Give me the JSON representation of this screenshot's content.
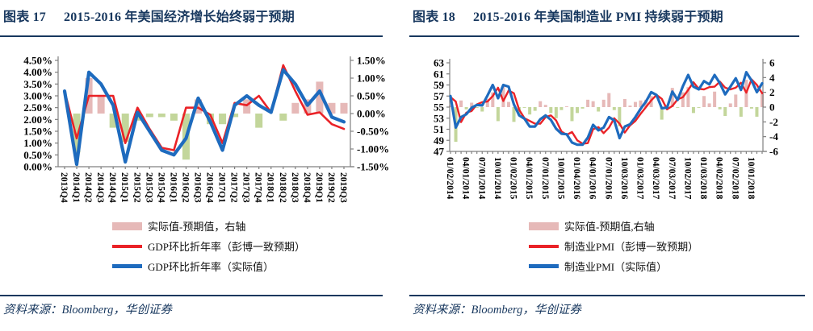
{
  "colors": {
    "navy": "#17375E",
    "red": "#EA2227",
    "blue": "#1E6BBE",
    "pink": "#E6B9B8",
    "green": "#C3D69B",
    "axis": "#808080",
    "text": "#000000",
    "background": "#FFFFFF"
  },
  "panels": [
    {
      "figure_label": "图表 17",
      "title": "2015-2016 年美国经济增长始终弱于预期",
      "source": "资料来源：Bloomberg，华创证券",
      "legend": [
        {
          "label": "实际值-预期值，右轴",
          "swatch": "pink-bar"
        },
        {
          "label": "GDP环比折年率（彭博一致预期）",
          "swatch": "red-line"
        },
        {
          "label": "GDP环比折年率（实际值）",
          "swatch": "blue-line"
        }
      ]
    },
    {
      "figure_label": "图表 18",
      "title": "2015-2016 年美国制造业 PMI 持续弱于预期",
      "source": "资料来源：Bloomberg，华创证券",
      "legend": [
        {
          "label": "实际值-预期值,右轴",
          "swatch": "pink-bar"
        },
        {
          "label": "制造业PMI（彭博一致预期）",
          "swatch": "red-line"
        },
        {
          "label": "制造业PMI（实际值）",
          "swatch": "blue-line"
        }
      ]
    }
  ],
  "chart_data": [
    {
      "type": "combo_bar_line",
      "title": "图表 17 2015-2016 年美国经济增长始终弱于预期",
      "n_points": 24,
      "x_label_step": 1,
      "x_labels": [
        "2013Q4",
        "2014Q1",
        "2014Q2",
        "2014Q3",
        "2014Q4",
        "2015Q1",
        "2015Q2",
        "2015Q3",
        "2015Q4",
        "2016Q1",
        "2016Q2",
        "2016Q3",
        "2016Q4",
        "2017Q1",
        "2017Q2",
        "2017Q3",
        "2017Q4",
        "2018Q1",
        "2018Q2",
        "2018Q3",
        "2018Q4",
        "2019Q1",
        "2019Q2",
        "2019Q3"
      ],
      "left_axis": {
        "min": 0,
        "max": 4.5,
        "tick_values": [
          0,
          0.5,
          1,
          1.5,
          2,
          2.5,
          3,
          3.5,
          4,
          4.5
        ],
        "tick_labels": [
          "0.00%",
          "0.50%",
          "1.00%",
          "1.50%",
          "2.00%",
          "2.50%",
          "3.00%",
          "3.50%",
          "4.00%",
          "4.50%"
        ]
      },
      "right_axis": {
        "min": -1.5,
        "max": 1.5,
        "tick_values": [
          -1.5,
          -1,
          -0.5,
          0,
          0.5,
          1,
          1.5
        ],
        "tick_labels": [
          "-1.50%",
          "-1.00%",
          "-0.50%",
          "0.00%",
          "0.50%",
          "1.00%",
          "1.50%"
        ]
      },
      "series": [
        {
          "name": "实际值-预期值，右轴",
          "type": "bar",
          "axis": "right",
          "values": [
            0,
            -1.1,
            1,
            0.5,
            -0.4,
            -0.8,
            -0.2,
            -0.1,
            -0.1,
            -0.2,
            -1.3,
            0.4,
            -0.3,
            -0.3,
            -0.1,
            0.4,
            -0.4,
            0,
            -0.2,
            0.3,
            0.4,
            0.9,
            0.3,
            0.3
          ]
        },
        {
          "name": "GDP环比折年率（彭博一致预期）",
          "type": "line",
          "axis": "left",
          "color_key": "red",
          "values": [
            3.2,
            1.2,
            3,
            3,
            3,
            1,
            2.5,
            1.6,
            0.8,
            0.7,
            2.5,
            2.5,
            2.2,
            1,
            2.7,
            2.6,
            3,
            2.3,
            4.3,
            3.2,
            2.2,
            2.3,
            1.8,
            1.6
          ]
        },
        {
          "name": "GDP环比折年率（实际值）",
          "type": "line",
          "axis": "left",
          "color_key": "blue",
          "values": [
            3.2,
            0.1,
            4,
            3.5,
            2.6,
            0.2,
            2.3,
            1.5,
            0.7,
            0.5,
            1.2,
            2.9,
            1.9,
            0.7,
            2.6,
            3,
            2.6,
            2.3,
            4.1,
            3.5,
            2.6,
            3.2,
            2.1,
            1.9
          ]
        }
      ]
    },
    {
      "type": "combo_bar_line",
      "title": "图表 18 2015-2016 年美国制造业 PMI 持续弱于预期",
      "n_points": 60,
      "x_label_step": 3,
      "x_labels": [
        "01/02/2014",
        "04/01/2014",
        "07/01/2014",
        "10/01/2014",
        "01/02/2015",
        "04/01/2015",
        "07/01/2015",
        "10/01/2015",
        "01/04/2016",
        "04/01/2016",
        "07/01/2016",
        "10/03/2016",
        "01/03/2017",
        "04/03/2017",
        "07/03/2017",
        "10/02/2017",
        "01/03/2018",
        "04/02/2018",
        "07/02/2018",
        "10/01/2018"
      ],
      "left_axis": {
        "min": 47,
        "max": 63,
        "tick_values": [
          47,
          49,
          51,
          53,
          55,
          57,
          59,
          61,
          63
        ],
        "tick_labels": [
          "47",
          "49",
          "51",
          "53",
          "55",
          "57",
          "59",
          "61",
          "63"
        ]
      },
      "right_axis": {
        "min": -6,
        "max": 6,
        "tick_values": [
          -6,
          -4,
          -2,
          0,
          2,
          4,
          6
        ],
        "tick_labels": [
          "-6",
          "-4",
          "-2",
          "0",
          "2",
          "4",
          "6"
        ]
      },
      "series": [
        {
          "name": "实际值-预期值,右轴",
          "type": "bar",
          "axis": "right",
          "values": [
            0.2,
            -4.7,
            0.9,
            -0.3,
            0.6,
            -0.1,
            -0.6,
            1.1,
            2,
            -1.9,
            2.9,
            0.7,
            -2,
            -1,
            -0.1,
            -1,
            -0.5,
            0.8,
            0.3,
            -0.8,
            -1.5,
            -0.4,
            0.1,
            -1.9,
            -0.8,
            -0.2,
            1,
            0.8,
            -0.6,
            1,
            1.9,
            -0.4,
            -2.6,
            1.1,
            0.2,
            0.7,
            0.9,
            1,
            1.5,
            0,
            -1.7,
            0.3,
            2.6,
            -0.1,
            2,
            2.7,
            -0.8,
            -0.1,
            1.5,
            0.5,
            2.1,
            -0.3,
            -1.2,
            0.5,
            1.7,
            -1.3,
            3.7,
            -0.2,
            -1.3,
            1.8
          ]
        },
        {
          "name": "制造业PMI（彭博一致预期）",
          "type": "line",
          "axis": "left",
          "color_key": "red",
          "values": [
            56.8,
            56,
            52.3,
            54,
            54.3,
            55.5,
            55.9,
            56,
            57,
            58.5,
            56.1,
            58,
            57.5,
            54.5,
            53,
            52.5,
            52,
            52,
            53.2,
            53.5,
            52.6,
            50.6,
            50,
            50.5,
            49,
            48.4,
            48.5,
            51,
            51.4,
            50.3,
            51.3,
            53,
            52,
            50.4,
            51.7,
            52.5,
            53.8,
            55,
            56.2,
            57.2,
            56.5,
            54.6,
            55.2,
            56.4,
            56.8,
            58.1,
            59.5,
            58.3,
            58.2,
            58.6,
            58.7,
            59.6,
            58.5,
            58.2,
            58.5,
            59.4,
            57.6,
            60,
            59,
            57.5
          ]
        },
        {
          "name": "制造业PMI（实际值）",
          "type": "line",
          "axis": "left",
          "color_key": "blue",
          "values": [
            57,
            51.3,
            53.2,
            53.7,
            54.9,
            55.4,
            55.3,
            57.1,
            59,
            56.6,
            59,
            58.7,
            55.5,
            53.5,
            52.9,
            51.5,
            51.5,
            52.8,
            53.5,
            52.7,
            51.1,
            50.2,
            50.1,
            48.6,
            48.2,
            48.2,
            49.5,
            51.8,
            50.8,
            51.3,
            53.2,
            52.6,
            49.4,
            51.5,
            51.9,
            53.2,
            54.7,
            56,
            57.7,
            57.2,
            54.8,
            54.9,
            57.8,
            56.3,
            58.8,
            60.8,
            58.7,
            58.2,
            59.7,
            59.1,
            60.8,
            59.3,
            57.3,
            58.7,
            60.2,
            58.1,
            61.3,
            59.8,
            57.7,
            59.3
          ]
        }
      ]
    }
  ]
}
